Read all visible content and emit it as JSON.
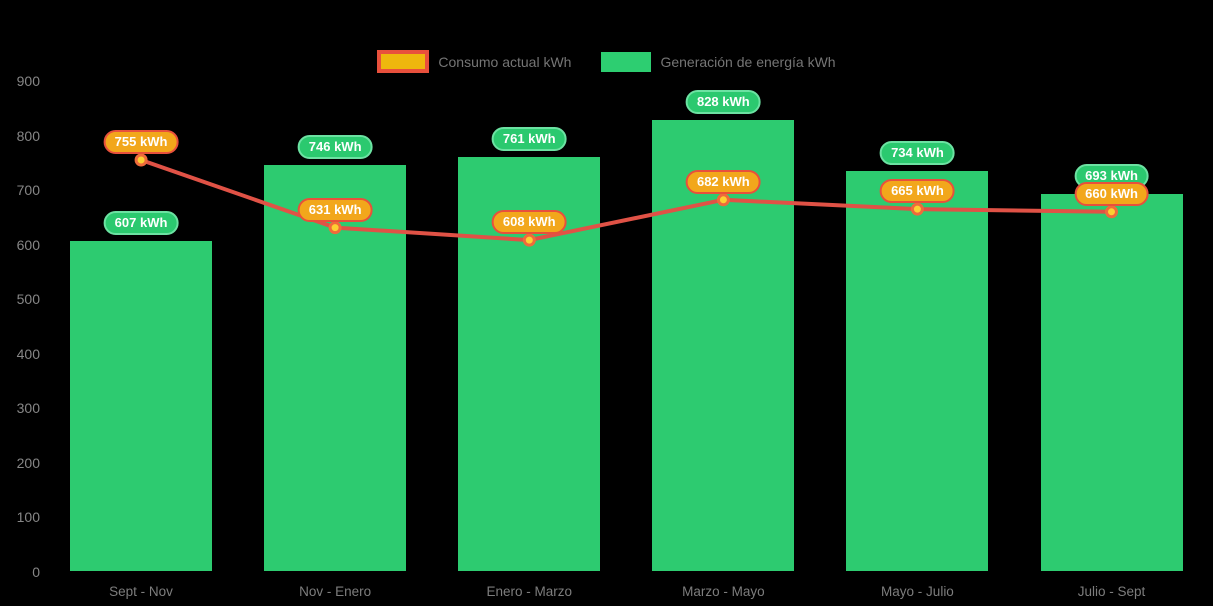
{
  "legend": {
    "items": [
      {
        "label": "Consumo actual kWh",
        "color_fill": "#eeb70d",
        "color_border": "#e8503c"
      },
      {
        "label": "Generación de energía kWh",
        "color_fill": "#2dce71"
      }
    ]
  },
  "chart_data": {
    "type": "bar",
    "subtype": "bar+line combo",
    "categories": [
      "Sept - Nov",
      "Nov - Enero",
      "Enero - Marzo",
      "Marzo - Mayo",
      "Mayo - Julio",
      "Julio - Sept"
    ],
    "series": [
      {
        "name": "Consumo actual kWh",
        "type": "line",
        "unit": "kWh",
        "values": [
          755,
          631,
          608,
          682,
          665,
          660
        ],
        "point_labels": [
          "755 kWh",
          "631 kWh",
          "608 kWh",
          "682 kWh",
          "665 kWh",
          "660 kWh"
        ]
      },
      {
        "name": "Generación de energía kWh",
        "type": "bar",
        "unit": "kWh",
        "values": [
          607,
          746,
          761,
          828,
          734,
          693
        ],
        "point_labels": [
          "607 kWh",
          "746 kWh",
          "761 kWh",
          "828 kWh",
          "734 kWh",
          "693 kWh"
        ]
      }
    ],
    "yticks": [
      0,
      100,
      200,
      300,
      400,
      500,
      600,
      700,
      800,
      900
    ],
    "ylim": [
      0,
      900
    ],
    "xlabel": "",
    "ylabel": "",
    "title": "",
    "grid": false,
    "legend_position": "top"
  },
  "colors": {
    "background": "#000000",
    "bar_green": "#2dcb70",
    "green_pill_fill": "#2bc96f",
    "green_pill_border": "#6ce2a2",
    "orange_pill_fill": "#f2a71b",
    "orange_pill_border": "#e8503c",
    "line_red": "#e05246",
    "point_fill": "#fdd032",
    "point_stroke": "#ee6b3b",
    "axis_text": "#868686",
    "legend_text": "#757575",
    "pill_text": "#ffffff"
  }
}
